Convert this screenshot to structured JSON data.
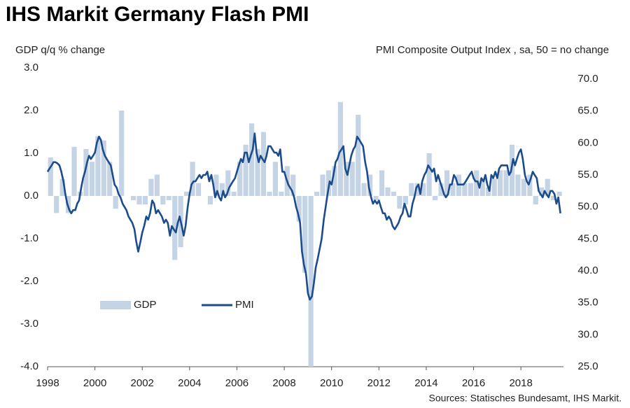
{
  "chart_data": {
    "type": "combo",
    "title": "IHS Markit Germany Flash PMI",
    "y_label": "GDP q/q % change",
    "y2_label": "PMI Composite  Output Index , sa, 50 = no change",
    "source": "Sources: Statisches Bundesamt, IHS Markit.",
    "xlim": [
      1998,
      2019.8
    ],
    "xticks": [
      1998,
      2000,
      2002,
      2004,
      2006,
      2008,
      2010,
      2012,
      2014,
      2016,
      2018
    ],
    "ylim": [
      -4,
      3
    ],
    "yticks": [
      {
        "value": -4,
        "label": "-4.0"
      },
      {
        "value": -3,
        "label": "-3.0"
      },
      {
        "value": -2,
        "label": "-2.0"
      },
      {
        "value": -1,
        "label": "-1.0"
      },
      {
        "value": 0,
        "label": "0.0"
      },
      {
        "value": 1,
        "label": "1.0"
      },
      {
        "value": 2,
        "label": "2.0"
      },
      {
        "value": 3,
        "label": "3.0"
      }
    ],
    "y2lim": [
      25,
      71.75
    ],
    "y2ticks": [
      {
        "value": 25,
        "label": "25.0"
      },
      {
        "value": 30,
        "label": "30.0"
      },
      {
        "value": 35,
        "label": "35.0"
      },
      {
        "value": 40,
        "label": "40.0"
      },
      {
        "value": 45,
        "label": "45.0"
      },
      {
        "value": 50,
        "label": "50.0"
      },
      {
        "value": 55,
        "label": "55.0"
      },
      {
        "value": 60,
        "label": "60.0"
      },
      {
        "value": 65,
        "label": "65.0"
      },
      {
        "value": 70,
        "label": "70.0"
      }
    ],
    "legend": "lower left",
    "series": [
      {
        "name": "GDP",
        "type": "bar",
        "color": "#c5d4e4",
        "x": [
          1998.125,
          1998.375,
          1998.625,
          1998.875,
          1999.125,
          1999.375,
          1999.625,
          1999.875,
          2000.125,
          2000.375,
          2000.625,
          2000.875,
          2001.125,
          2001.375,
          2001.625,
          2001.875,
          2002.125,
          2002.375,
          2002.625,
          2002.875,
          2003.125,
          2003.375,
          2003.625,
          2003.875,
          2004.125,
          2004.375,
          2004.625,
          2004.875,
          2005.125,
          2005.375,
          2005.625,
          2005.875,
          2006.125,
          2006.375,
          2006.625,
          2006.875,
          2007.125,
          2007.375,
          2007.625,
          2007.875,
          2008.125,
          2008.375,
          2008.625,
          2008.875,
          2009.125,
          2009.375,
          2009.625,
          2009.875,
          2010.125,
          2010.375,
          2010.625,
          2010.875,
          2011.125,
          2011.375,
          2011.625,
          2011.875,
          2012.125,
          2012.375,
          2012.625,
          2012.875,
          2013.125,
          2013.375,
          2013.625,
          2013.875,
          2014.125,
          2014.375,
          2014.625,
          2014.875,
          2015.125,
          2015.375,
          2015.625,
          2015.875,
          2016.125,
          2016.375,
          2016.625,
          2016.875,
          2017.125,
          2017.375,
          2017.625,
          2017.875,
          2018.125,
          2018.375,
          2018.625,
          2018.875,
          2019.125,
          2019.375,
          2019.625
        ],
        "values": [
          0.9,
          -0.4,
          0.4,
          -0.4,
          1.15,
          0.1,
          1.1,
          0.8,
          1.4,
          1.3,
          0.8,
          -0.3,
          2.0,
          0.0,
          -0.1,
          -0.2,
          -0.2,
          0.4,
          0.5,
          -0.2,
          -0.1,
          -1.5,
          -1.2,
          0.1,
          0.8,
          0.3,
          0.0,
          -0.2,
          0.5,
          0.3,
          0.6,
          0.1,
          0.8,
          1.2,
          1.7,
          1.1,
          1.5,
          0.1,
          0.8,
          0.1,
          0.7,
          0.5,
          -0.6,
          -1.8,
          -4.0,
          0.1,
          0.5,
          0.6,
          0.7,
          2.2,
          0.8,
          0.8,
          1.9,
          0.3,
          0.5,
          -0.1,
          0.6,
          0.2,
          0.1,
          -0.3,
          -0.2,
          0.3,
          0.3,
          0.3,
          1.0,
          -0.1,
          0.3,
          0.6,
          0.3,
          0.5,
          0.3,
          0.3,
          0.6,
          0.4,
          0.2,
          0.4,
          0.6,
          0.6,
          1.2,
          0.5,
          0.4,
          0.5,
          -0.2,
          0.2,
          0.4,
          -0.1,
          0.1
        ]
      },
      {
        "name": "PMI",
        "type": "line",
        "axis": "y2",
        "color": "#1c4c8c",
        "x": [
          1998,
          1998.08,
          1998.17,
          1998.25,
          1998.33,
          1998.42,
          1998.5,
          1998.58,
          1998.67,
          1998.75,
          1998.83,
          1998.92,
          1999,
          1999.08,
          1999.17,
          1999.25,
          1999.33,
          1999.42,
          1999.5,
          1999.58,
          1999.67,
          1999.75,
          1999.83,
          1999.92,
          2000,
          2000.08,
          2000.17,
          2000.25,
          2000.33,
          2000.42,
          2000.5,
          2000.58,
          2000.67,
          2000.75,
          2000.83,
          2000.92,
          2001,
          2001.08,
          2001.17,
          2001.25,
          2001.33,
          2001.42,
          2001.5,
          2001.58,
          2001.67,
          2001.75,
          2001.83,
          2001.92,
          2002,
          2002.08,
          2002.17,
          2002.25,
          2002.33,
          2002.42,
          2002.5,
          2002.58,
          2002.67,
          2002.75,
          2002.83,
          2002.92,
          2003,
          2003.08,
          2003.17,
          2003.25,
          2003.33,
          2003.42,
          2003.5,
          2003.58,
          2003.67,
          2003.75,
          2003.83,
          2003.92,
          2004,
          2004.08,
          2004.17,
          2004.25,
          2004.33,
          2004.42,
          2004.5,
          2004.58,
          2004.67,
          2004.75,
          2004.83,
          2004.92,
          2005,
          2005.08,
          2005.17,
          2005.25,
          2005.33,
          2005.42,
          2005.5,
          2005.58,
          2005.67,
          2005.75,
          2005.83,
          2005.92,
          2006,
          2006.08,
          2006.17,
          2006.25,
          2006.33,
          2006.42,
          2006.5,
          2006.58,
          2006.67,
          2006.75,
          2006.83,
          2006.92,
          2007,
          2007.08,
          2007.17,
          2007.25,
          2007.33,
          2007.42,
          2007.5,
          2007.58,
          2007.67,
          2007.75,
          2007.83,
          2007.92,
          2008,
          2008.08,
          2008.17,
          2008.25,
          2008.33,
          2008.42,
          2008.5,
          2008.58,
          2008.67,
          2008.75,
          2008.83,
          2008.92,
          2009,
          2009.08,
          2009.17,
          2009.25,
          2009.33,
          2009.42,
          2009.5,
          2009.58,
          2009.67,
          2009.75,
          2009.83,
          2009.92,
          2010,
          2010.08,
          2010.17,
          2010.25,
          2010.33,
          2010.42,
          2010.5,
          2010.58,
          2010.67,
          2010.75,
          2010.83,
          2010.92,
          2011,
          2011.08,
          2011.17,
          2011.25,
          2011.33,
          2011.42,
          2011.5,
          2011.58,
          2011.67,
          2011.75,
          2011.83,
          2011.92,
          2012,
          2012.08,
          2012.17,
          2012.25,
          2012.33,
          2012.42,
          2012.5,
          2012.58,
          2012.67,
          2012.75,
          2012.83,
          2012.92,
          2013,
          2013.08,
          2013.17,
          2013.25,
          2013.33,
          2013.42,
          2013.5,
          2013.58,
          2013.67,
          2013.75,
          2013.83,
          2013.92,
          2014,
          2014.08,
          2014.17,
          2014.25,
          2014.33,
          2014.42,
          2014.5,
          2014.58,
          2014.67,
          2014.75,
          2014.83,
          2014.92,
          2015,
          2015.08,
          2015.17,
          2015.25,
          2015.33,
          2015.42,
          2015.5,
          2015.58,
          2015.67,
          2015.75,
          2015.83,
          2015.92,
          2016,
          2016.08,
          2016.17,
          2016.25,
          2016.33,
          2016.42,
          2016.5,
          2016.58,
          2016.67,
          2016.75,
          2016.83,
          2016.92,
          2017,
          2017.08,
          2017.17,
          2017.25,
          2017.33,
          2017.42,
          2017.5,
          2017.58,
          2017.67,
          2017.75,
          2017.83,
          2017.92,
          2018,
          2018.08,
          2018.17,
          2018.25,
          2018.33,
          2018.42,
          2018.5,
          2018.58,
          2018.67,
          2018.75,
          2018.83,
          2018.92,
          2019,
          2019.08,
          2019.17,
          2019.25,
          2019.33,
          2019.42,
          2019.5,
          2019.58,
          2019.67
        ],
        "values": [
          55.5,
          56,
          56.5,
          57,
          57,
          56.8,
          56.5,
          55.5,
          54,
          52,
          50.5,
          49.5,
          49,
          49.5,
          49.5,
          50.5,
          51,
          53,
          54.5,
          55.5,
          57,
          58,
          57.5,
          58,
          58.5,
          60,
          61,
          60.5,
          59,
          58,
          57.5,
          57,
          56.5,
          55,
          53.5,
          53,
          52,
          51.5,
          50.5,
          50,
          49.5,
          48.5,
          48,
          47.5,
          46.5,
          44.5,
          43,
          44.5,
          46,
          47,
          48.5,
          48,
          49,
          51,
          50.5,
          49,
          49.5,
          49,
          48.5,
          47.5,
          48,
          47.5,
          45.5,
          47,
          46.5,
          46,
          47.5,
          48.5,
          47,
          45.5,
          47,
          50,
          52,
          53.5,
          54,
          54,
          54.5,
          55,
          54.5,
          55,
          55,
          55.5,
          54,
          55,
          53.5,
          51.5,
          52.5,
          51.5,
          51,
          52.5,
          51.5,
          52,
          53,
          53.5,
          54,
          54.5,
          55.5,
          56.5,
          57.5,
          57,
          58.5,
          58.5,
          57,
          58,
          59,
          61.5,
          58.5,
          57,
          58,
          57.5,
          57,
          58,
          59.5,
          59.5,
          59,
          58.5,
          58.5,
          58,
          59,
          55.5,
          55.5,
          54.5,
          53.5,
          53,
          52.5,
          51.5,
          50,
          49,
          47.5,
          43,
          41,
          39.5,
          36.5,
          35.5,
          36,
          38,
          40.5,
          42,
          43.5,
          45,
          48,
          50,
          52,
          54,
          53.5,
          55,
          57,
          57.5,
          58.5,
          59,
          59.5,
          56,
          55,
          56.5,
          58,
          59,
          59.5,
          61,
          60.5,
          60,
          59.5,
          57,
          55.5,
          53,
          51.5,
          50.5,
          51,
          50.5,
          51,
          50,
          49,
          49,
          48,
          48.5,
          48,
          47,
          46.5,
          47,
          47.5,
          48.5,
          49,
          50.5,
          49.5,
          48.5,
          48.5,
          50.5,
          51.5,
          53,
          53.5,
          52,
          54,
          55,
          55.5,
          56.5,
          56,
          55.5,
          56,
          54,
          55,
          54,
          53,
          52,
          51.5,
          52,
          53.5,
          53.5,
          55,
          54.5,
          53.5,
          53.5,
          53.5,
          53.5,
          54,
          54.5,
          55,
          55.5,
          54.5,
          54,
          54,
          53,
          54.5,
          54,
          55,
          53.5,
          52.5,
          55,
          54.5,
          55.5,
          54.5,
          56,
          56.5,
          56.5,
          56.5,
          56.5,
          55,
          55.5,
          57.5,
          56.5,
          57.5,
          58.5,
          59,
          57.5,
          55,
          54,
          53.5,
          54.5,
          55.5,
          55,
          54.5,
          52.5,
          52,
          51.5,
          52.5,
          52,
          51.5,
          52.5,
          52.5,
          52,
          50.5,
          51.5,
          49
        ]
      }
    ]
  }
}
